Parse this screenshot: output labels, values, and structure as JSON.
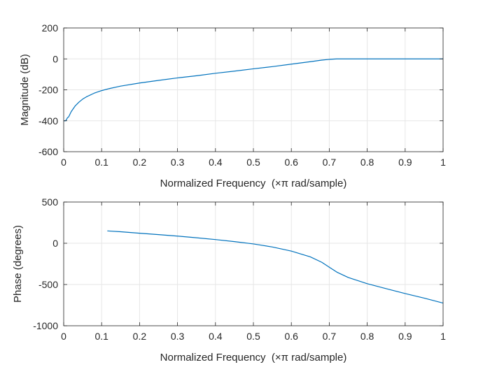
{
  "chart_data": [
    {
      "type": "line",
      "title": "",
      "xlabel": "Normalized Frequency  (×π rad/sample)",
      "ylabel": "Magnitude (dB)",
      "xlim": [
        0,
        1
      ],
      "ylim": [
        -600,
        200
      ],
      "xticks": [
        0,
        0.1,
        0.2,
        0.3,
        0.4,
        0.5,
        0.6,
        0.7,
        0.8,
        0.9,
        1
      ],
      "xtick_labels": [
        "0",
        "0.1",
        "0.2",
        "0.3",
        "0.4",
        "0.5",
        "0.6",
        "0.7",
        "0.8",
        "0.9",
        "1"
      ],
      "yticks": [
        -600,
        -400,
        -200,
        0,
        200
      ],
      "ytick_labels": [
        "-600",
        "-400",
        "-200",
        "0",
        "200"
      ],
      "grid": true,
      "series": [
        {
          "name": "magnitude",
          "color": "#0072bd",
          "x": [
            0,
            0.005,
            0.008,
            0.01,
            0.013,
            0.02,
            0.03,
            0.04,
            0.05,
            0.06,
            0.08,
            0.1,
            0.12,
            0.15,
            0.2,
            0.25,
            0.3,
            0.35,
            0.4,
            0.45,
            0.5,
            0.55,
            0.6,
            0.65,
            0.68,
            0.7,
            0.72,
            0.74,
            0.76,
            0.8,
            0.9,
            1
          ],
          "y": [
            -400,
            -400,
            -390,
            -380,
            -375,
            -340,
            -305,
            -280,
            -260,
            -245,
            -222,
            -205,
            -192,
            -176,
            -156,
            -139,
            -123,
            -109,
            -93,
            -79,
            -64,
            -50,
            -34,
            -18,
            -8,
            -3,
            0,
            0,
            0,
            0,
            0,
            0
          ]
        }
      ]
    },
    {
      "type": "line",
      "title": "",
      "xlabel": "Normalized Frequency  (×π rad/sample)",
      "ylabel": "Phase (degrees)",
      "xlim": [
        0,
        1
      ],
      "ylim": [
        -1000,
        500
      ],
      "xticks": [
        0,
        0.1,
        0.2,
        0.3,
        0.4,
        0.5,
        0.6,
        0.7,
        0.8,
        0.9,
        1
      ],
      "xtick_labels": [
        "0",
        "0.1",
        "0.2",
        "0.3",
        "0.4",
        "0.5",
        "0.6",
        "0.7",
        "0.8",
        "0.9",
        "1"
      ],
      "yticks": [
        -1000,
        -500,
        0,
        500
      ],
      "ytick_labels": [
        "-1000",
        "-500",
        "0",
        "500"
      ],
      "grid": true,
      "series": [
        {
          "name": "phase",
          "color": "#0072bd",
          "x": [
            0.115,
            0.15,
            0.2,
            0.25,
            0.3,
            0.35,
            0.4,
            0.45,
            0.5,
            0.55,
            0.6,
            0.65,
            0.68,
            0.7,
            0.72,
            0.75,
            0.8,
            0.85,
            0.9,
            0.95,
            1
          ],
          "y": [
            150,
            140,
            122,
            105,
            87,
            67,
            45,
            20,
            -8,
            -45,
            -95,
            -165,
            -230,
            -290,
            -350,
            -415,
            -490,
            -550,
            -610,
            -665,
            -725
          ]
        }
      ]
    }
  ]
}
